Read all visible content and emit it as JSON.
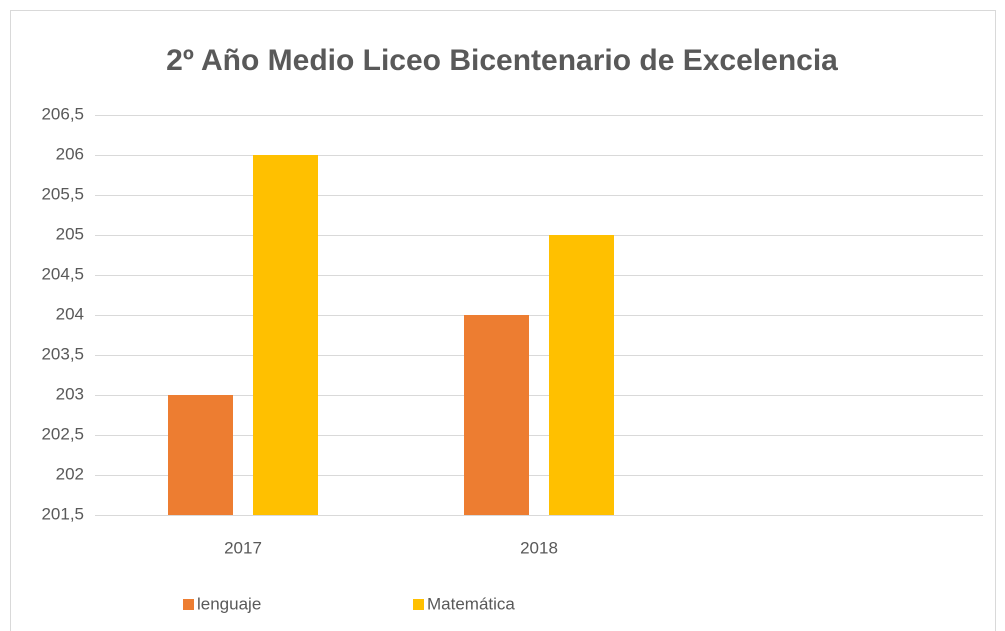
{
  "chart_data": {
    "type": "bar",
    "title": "2º Año Medio Liceo Bicentenario de Excelencia",
    "categories": [
      "2017",
      "2018",
      null
    ],
    "series": [
      {
        "name": "lenguaje",
        "color": "#ed7d31",
        "values": [
          203,
          204,
          null
        ]
      },
      {
        "name": "Matemática",
        "color": "#ffc000",
        "values": [
          206,
          205,
          null
        ]
      }
    ],
    "ylim": [
      201.5,
      206.5
    ],
    "yticks": [
      {
        "value": 201.5,
        "label": "201,5"
      },
      202,
      {
        "value": 202.5,
        "label": "202,5"
      },
      203,
      {
        "value": 203.5,
        "label": "203,5"
      },
      204,
      {
        "value": 204.5,
        "label": "204,5"
      },
      205,
      {
        "value": 205.5,
        "label": "205,5"
      },
      206,
      {
        "value": 206.5,
        "label": "206,5"
      }
    ],
    "grid": true,
    "legend": "bottom"
  }
}
